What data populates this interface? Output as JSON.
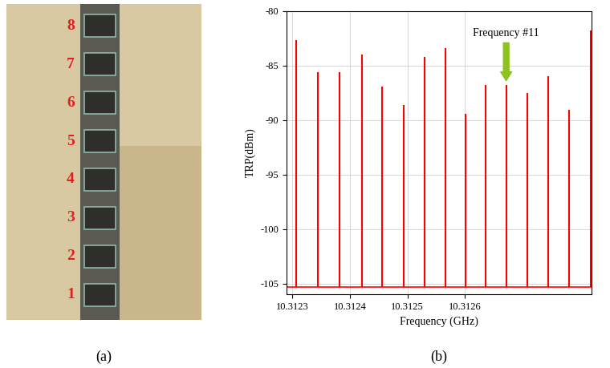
{
  "chart_data": {
    "type": "line",
    "caption": "(b)",
    "x_label": "Frequency (GHz)",
    "y_label": "TRP(dBm)",
    "x": [
      10.3123065,
      10.3123442,
      10.3123818,
      10.3124208,
      10.3124558,
      10.3124935,
      10.3125299,
      10.3125662,
      10.3126013,
      10.3126351,
      10.3126714,
      10.3127078,
      10.3127442,
      10.3127805,
      10.3128182
    ],
    "values": [
      -82.7,
      -85.6,
      -85.6,
      -84.0,
      -86.9,
      -88.6,
      -84.2,
      -83.4,
      -89.4,
      -86.8,
      -86.8,
      -87.5,
      -86.0,
      -89.1,
      -81.8
    ],
    "noise_floor": -105.3,
    "color": "#ff0000",
    "xlim": [
      10.31229,
      10.31282
    ],
    "xticks": [
      10.3123,
      10.3124,
      10.3125,
      10.3126
    ],
    "ylim": [
      -106,
      -80
    ],
    "yticks": [
      -105,
      -100,
      -95,
      -90,
      -85,
      -80
    ],
    "grid": true,
    "annotation": {
      "text": "Frequency #11",
      "x": 10.3126714,
      "y": -86.8,
      "color": "#8dc21f"
    }
  },
  "photo": {
    "caption": "(a)",
    "labels": [
      "8",
      "7",
      "6",
      "5",
      "4",
      "3",
      "2",
      "1"
    ],
    "label_color": "#e02020"
  }
}
